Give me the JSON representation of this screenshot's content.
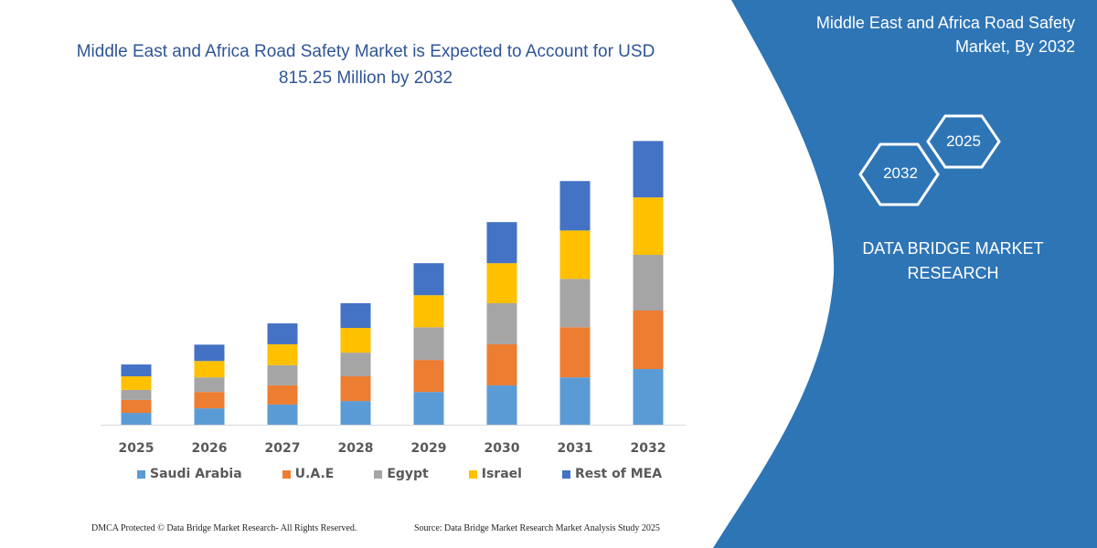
{
  "header": {
    "title": "Middle East and Africa Road Safety Market is Expected to Account for USD 815.25 Million by 2032"
  },
  "side_panel": {
    "title": "Middle East and Africa Road Safety Market, By 2032",
    "hex_years": [
      "2032",
      "2025"
    ],
    "brand": "DATA BRIDGE MARKET RESEARCH",
    "background_color": "#2e75b6"
  },
  "watermark": "DATA BRIDGE MARKET RESEARCH",
  "footer": {
    "copyright": "DMCA Protected © Data Bridge Market Research-  All Rights Reserved.",
    "source": "Source: Data Bridge Market Research  Market Analysis Study 2025"
  },
  "chart_data": {
    "type": "bar",
    "stacked": true,
    "title": "Middle East and Africa Road Safety Market is Expected to Account for USD 815.25 Million by 2032",
    "xlabel": "",
    "ylabel": "",
    "ylim": [
      0,
      900
    ],
    "grid": false,
    "legend_position": "bottom",
    "categories": [
      "2025",
      "2026",
      "2027",
      "2028",
      "2029",
      "2030",
      "2031",
      "2032"
    ],
    "series": [
      {
        "name": "Saudi Arabia",
        "color": "#5b9bd5",
        "values": [
          34,
          47,
          58,
          68,
          94,
          113,
          136,
          160
        ]
      },
      {
        "name": "U.A.E",
        "color": "#ed7d31",
        "values": [
          37,
          47,
          55,
          71,
          92,
          118,
          144,
          168
        ]
      },
      {
        "name": "Egypt",
        "color": "#a5a5a5",
        "values": [
          29,
          42,
          58,
          68,
          94,
          118,
          139,
          160
        ]
      },
      {
        "name": "Israel",
        "color": "#ffc000",
        "values": [
          39,
          47,
          60,
          71,
          92,
          115,
          139,
          165
        ]
      },
      {
        "name": "Rest of MEA",
        "color": "#4472c4",
        "values": [
          34,
          47,
          60,
          71,
          92,
          118,
          142,
          162
        ]
      }
    ]
  }
}
